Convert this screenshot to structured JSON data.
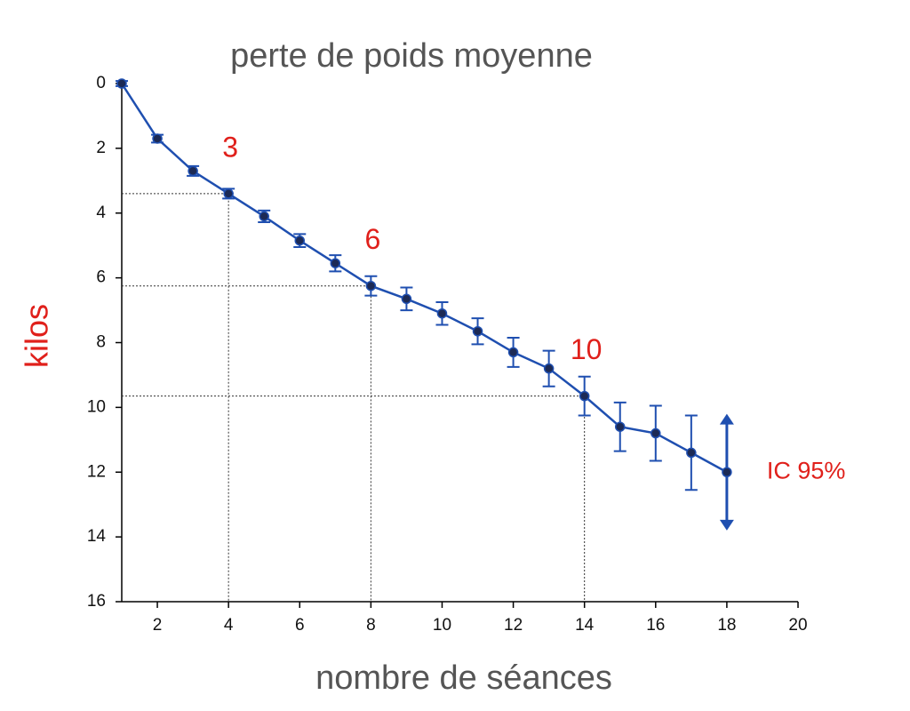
{
  "chart_data": {
    "type": "line",
    "title": "perte de poids moyenne",
    "x_label": "nombre de séances",
    "y_label": "kilos",
    "x": [
      1,
      2,
      3,
      4,
      5,
      6,
      7,
      8,
      9,
      10,
      11,
      12,
      13,
      14,
      15,
      16,
      17,
      18
    ],
    "series": [
      {
        "color": "#1f4fb0",
        "values": [
          0,
          1.7,
          2.7,
          3.4,
          4.1,
          4.85,
          5.55,
          6.25,
          6.65,
          7.1,
          7.65,
          8.3,
          8.8,
          9.65,
          10.6,
          10.8,
          11.4,
          12.0
        ],
        "errors": [
          0.08,
          0.12,
          0.15,
          0.15,
          0.18,
          0.2,
          0.25,
          0.3,
          0.35,
          0.35,
          0.4,
          0.45,
          0.55,
          0.6,
          0.75,
          0.85,
          1.15,
          1.8
        ]
      }
    ],
    "xlim": [
      1,
      20
    ],
    "xticks": [
      2,
      4,
      6,
      8,
      10,
      12,
      14,
      16,
      18,
      20
    ],
    "ylim": [
      0,
      16
    ],
    "yticks": [
      0,
      2,
      4,
      6,
      8,
      10,
      12,
      14,
      16
    ],
    "y_inverted": true,
    "guides": [
      {
        "x": 4,
        "label": "3"
      },
      {
        "x": 8,
        "label": "6"
      },
      {
        "x": 14,
        "label": "10"
      }
    ],
    "ci_label": "IC 95%"
  }
}
